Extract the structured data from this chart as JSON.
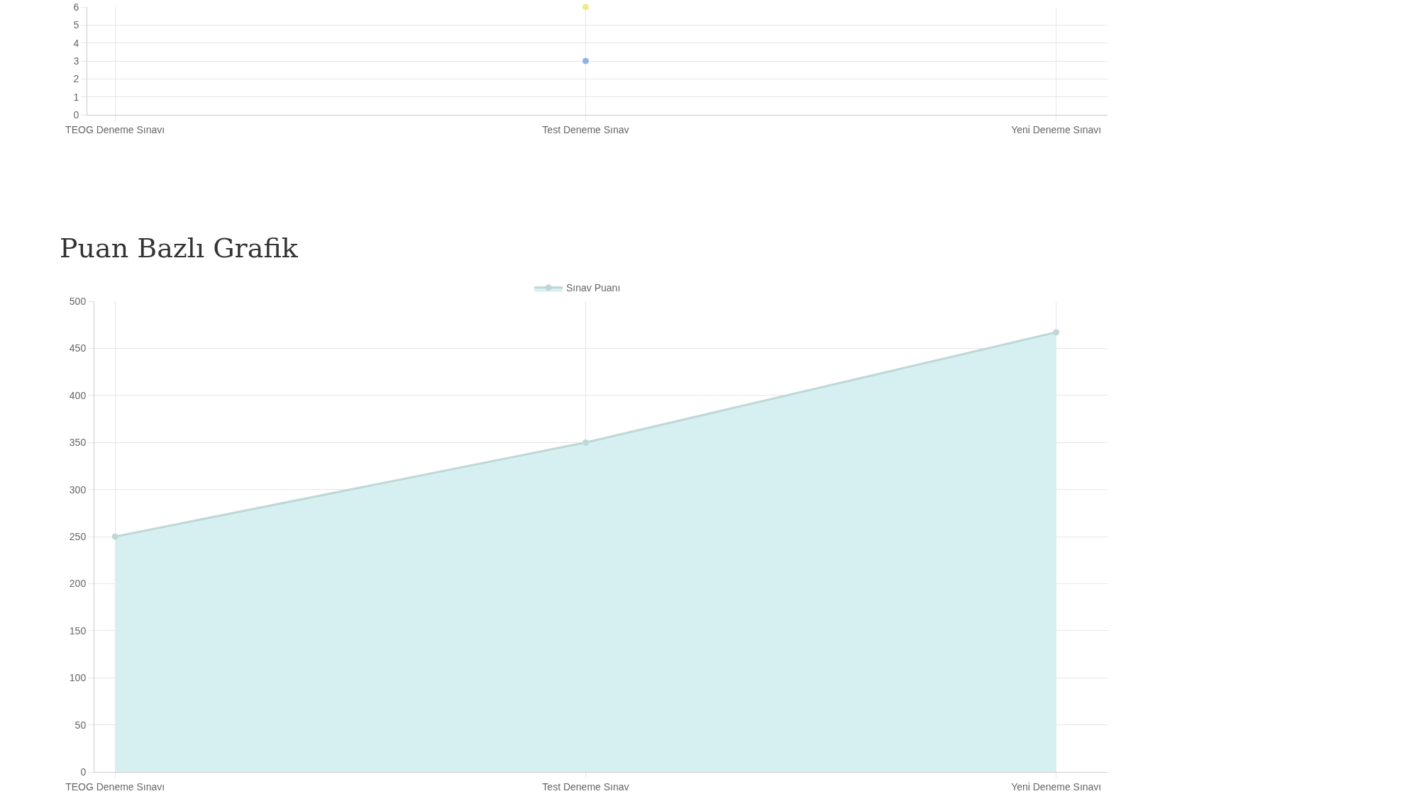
{
  "chart_data": [
    {
      "type": "line",
      "categories": [
        "TEOG Deneme Sınavı",
        "Test Deneme Sınav",
        "Yeni Deneme Sınavı"
      ],
      "series": [
        {
          "color": "#8fb3e3",
          "values": [
            null,
            3,
            null
          ]
        },
        {
          "color": "#f0ea80",
          "values": [
            null,
            6,
            null
          ]
        }
      ],
      "ylim": [
        0,
        6
      ],
      "yticks": [
        0,
        1,
        2,
        3,
        4,
        5,
        6
      ],
      "grid": true,
      "marker": "circle"
    },
    {
      "type": "area",
      "title": "Puan Bazlı Grafik",
      "categories": [
        "TEOG Deneme Sınavı",
        "Test Deneme Sınav",
        "Yeni Deneme Sınavı"
      ],
      "series": [
        {
          "name": "Sınav Puanı",
          "color": "#d6eff1",
          "values": [
            250,
            350,
            467
          ]
        }
      ],
      "ylim": [
        0,
        500
      ],
      "yticks": [
        0,
        50,
        100,
        150,
        200,
        250,
        300,
        350,
        400,
        450,
        500
      ],
      "grid": true,
      "legend": "top",
      "marker": "circle"
    }
  ]
}
